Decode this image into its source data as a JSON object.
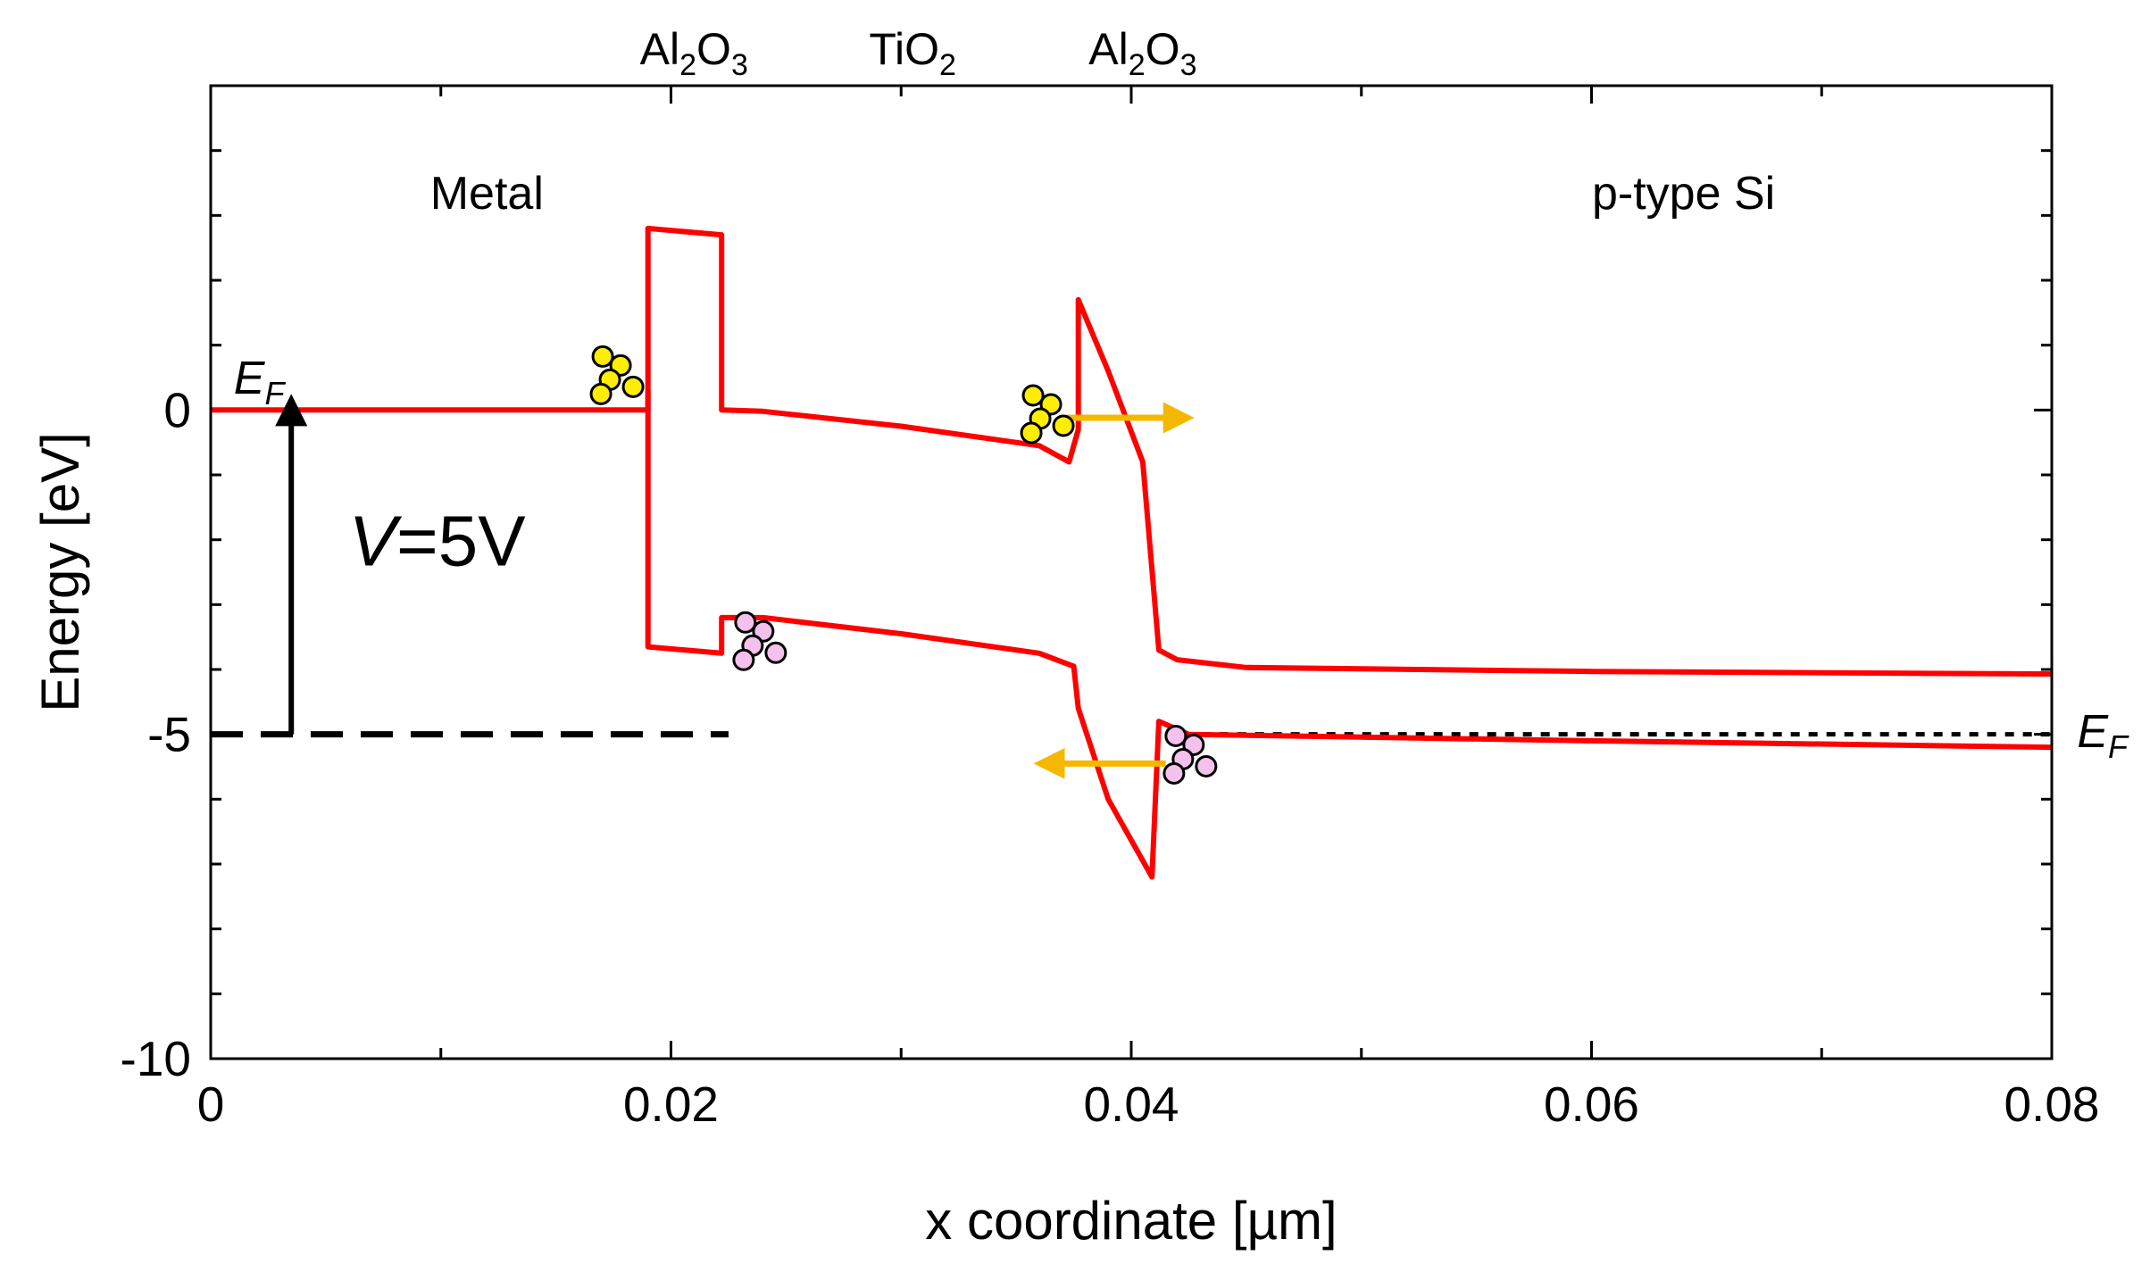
{
  "chart_data": {
    "type": "line",
    "title": "",
    "xlabel": "x coordinate [µm]",
    "ylabel": "Energy [eV]",
    "xlim": [
      0,
      0.08
    ],
    "ylim": [
      -10,
      5
    ],
    "xticks": [
      0,
      0.02,
      0.04,
      0.06,
      0.08
    ],
    "xtick_labels": [
      "0",
      "0.02",
      "0.04",
      "0.06",
      "0.08"
    ],
    "yticks": [
      -10,
      -5,
      0
    ],
    "ytick_labels": [
      "-10",
      "-5",
      "0"
    ],
    "top_layer_labels": [
      {
        "base": "Al",
        "sub": "2",
        "rest": "O",
        "sub2": "3",
        "x": 0.021
      },
      {
        "base": "TiO",
        "sub": "2",
        "rest": "",
        "sub2": "",
        "x": 0.0305
      },
      {
        "base": "Al",
        "sub": "2",
        "rest": "O",
        "sub2": "3",
        "x": 0.0405
      }
    ],
    "region_labels": [
      {
        "text": "Metal",
        "x": 0.012,
        "y": 3.1
      },
      {
        "text": "p-type Si",
        "x": 0.064,
        "y": 3.1
      }
    ],
    "annotations": {
      "voltage_italic": "V",
      "voltage_rest": "=5V",
      "ef_label": "E",
      "ef_subscript": "F"
    },
    "series": [
      {
        "color": "#ff0000",
        "points": [
          [
            0,
            0
          ],
          [
            0.019,
            0
          ],
          [
            0.019,
            2.8
          ],
          [
            0.0222,
            2.7
          ],
          [
            0.0222,
            0
          ],
          [
            0.024,
            -0.02
          ],
          [
            0.03,
            -0.25
          ],
          [
            0.036,
            -0.55
          ],
          [
            0.0373,
            -0.8
          ],
          [
            0.0377,
            -0.3
          ],
          [
            0.0377,
            1.7
          ],
          [
            0.039,
            0.6
          ],
          [
            0.0405,
            -0.8
          ],
          [
            0.0412,
            -3.7
          ],
          [
            0.042,
            -3.85
          ],
          [
            0.045,
            -3.97
          ],
          [
            0.06,
            -4.03
          ],
          [
            0.08,
            -4.07
          ]
        ]
      },
      {
        "color": "#ff0000",
        "points": [
          [
            0.019,
            0.3
          ],
          [
            0.019,
            -3.65
          ],
          [
            0.0222,
            -3.75
          ],
          [
            0.0222,
            -3.2
          ],
          [
            0.024,
            -3.2
          ],
          [
            0.03,
            -3.45
          ],
          [
            0.036,
            -3.75
          ],
          [
            0.0375,
            -3.95
          ],
          [
            0.0377,
            -4.6
          ],
          [
            0.039,
            -6.0
          ],
          [
            0.0409,
            -7.2
          ],
          [
            0.0412,
            -4.8
          ],
          [
            0.0425,
            -5.0
          ],
          [
            0.06,
            -5.1
          ],
          [
            0.08,
            -5.2
          ]
        ]
      }
    ],
    "reference_lines": [
      {
        "style": "dashed",
        "color": "#000000",
        "x": [
          0.0,
          0.0225
        ],
        "y": -5
      },
      {
        "style": "dotted",
        "color": "#000000",
        "x": [
          0.0415,
          0.08
        ],
        "y": -5
      }
    ],
    "arrows": [
      {
        "color": "#000000",
        "from": [
          0.0035,
          -5
        ],
        "to": [
          0.0035,
          0
        ],
        "label": "V=5V"
      },
      {
        "color": "#f5b800",
        "from": [
          0.0372,
          -0.12
        ],
        "to": [
          0.0422,
          -0.12
        ]
      },
      {
        "color": "#f5b800",
        "from": [
          0.0415,
          -5.45
        ],
        "to": [
          0.0363,
          -5.45
        ]
      }
    ],
    "particle_clusters": [
      {
        "type": "electron",
        "color": "#ffee00",
        "x": 0.0175,
        "y": 0.55
      },
      {
        "type": "electron",
        "color": "#ffee00",
        "x": 0.0362,
        "y": -0.05
      },
      {
        "type": "hole",
        "color": "#f3c1ec",
        "x": 0.0237,
        "y": -3.55
      },
      {
        "type": "hole",
        "color": "#f3c1ec",
        "x": 0.0424,
        "y": -5.3
      }
    ],
    "grid": false,
    "legend": "none"
  }
}
